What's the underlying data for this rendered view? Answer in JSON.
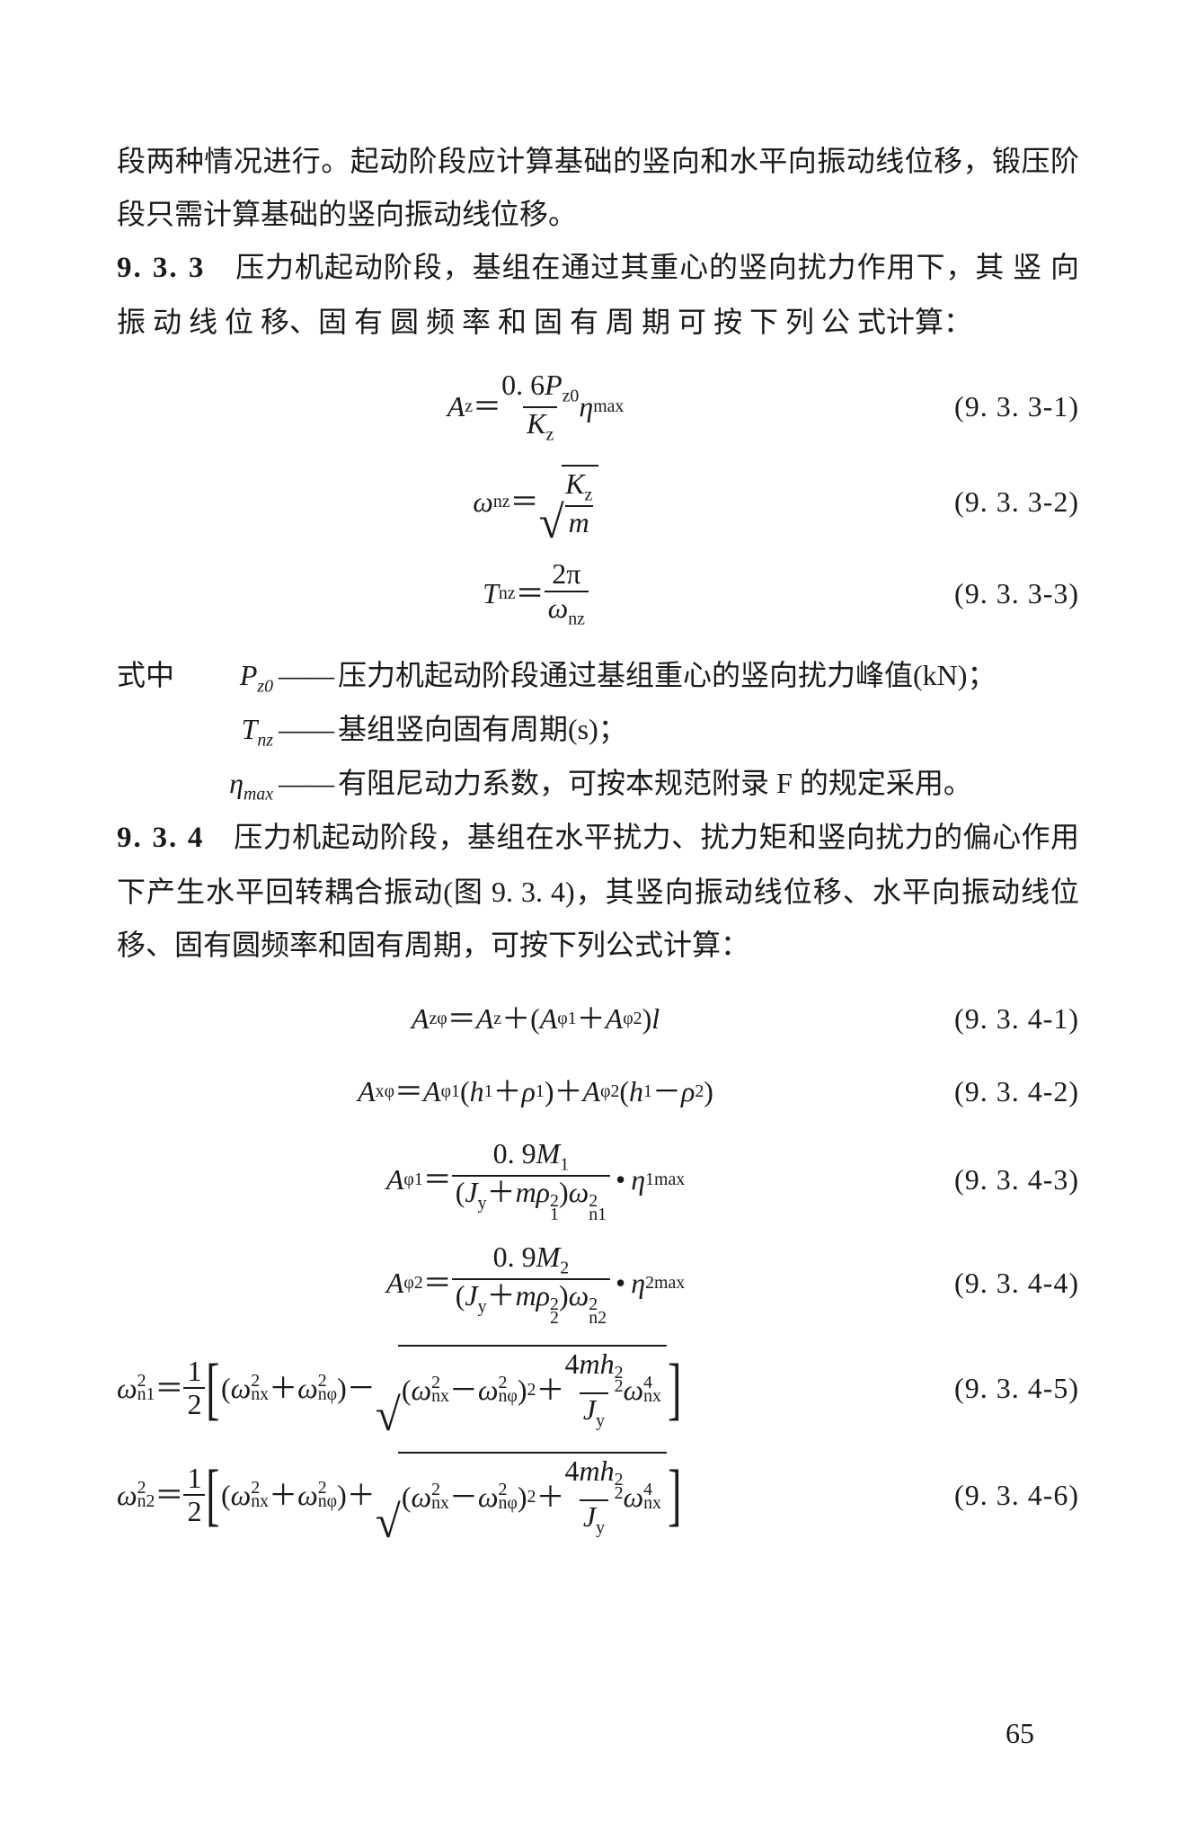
{
  "page_number": "65",
  "p1": "段两种情况进行。起动阶段应计算基础的竖向和水平向振动线位移，锻压阶段只需计算基础的竖向振动线位移。",
  "s933_num": "9. 3. 3",
  "s933_text": "　压力机起动阶段，基组在通过其重心的竖向扰力作用下，其 竖 向 振 动 线 位 移、固 有 圆 频 率 和 固 有 周 期 可 按 下 列 公 式计算：",
  "eq_933_1": {
    "label": "(9. 3. 3-1)",
    "lhs": "A",
    "lhs_sub": "z",
    "num_a": "0. 6",
    "num_b": "P",
    "num_b_sub": "z0",
    "den": "K",
    "den_sub": "z",
    "tail": "η",
    "tail_sub": "max"
  },
  "eq_933_2": {
    "label": "(9. 3. 3-2)",
    "lhs": "ω",
    "lhs_sub": "nz",
    "rad_num": "K",
    "rad_num_sub": "z",
    "rad_den": "m"
  },
  "eq_933_3": {
    "label": "(9. 3. 3-3)",
    "lhs": "T",
    "lhs_sub": "nz",
    "num": "2π",
    "den": "ω",
    "den_sub": "nz"
  },
  "where_label": "式中",
  "where1_sym": "P",
  "where1_sub": "z0",
  "where1_desc": "压力机起动阶段通过基组重心的竖向扰力峰值(kN)；",
  "where2_sym": "T",
  "where2_sub": "nz",
  "where2_desc": "基组竖向固有周期(s)；",
  "where3_sym": "η",
  "where3_sub": "max",
  "where3_desc": "有阻尼动力系数，可按本规范附录 F 的规定采用。",
  "s934_num": "9. 3. 4",
  "s934_text": "　压力机起动阶段，基组在水平扰力、扰力矩和竖向扰力的偏心作用下产生水平回转耦合振动(图 9. 3. 4)，其竖向振动线位移、水平向振动线位移、固有圆频率和固有周期，可按下列公式计算：",
  "eq_934_1": {
    "label": "(9. 3. 4-1)"
  },
  "eq_934_2": {
    "label": "(9. 3. 4-2)"
  },
  "eq_934_3": {
    "label": "(9. 3. 4-3)"
  },
  "eq_934_4": {
    "label": "(9. 3. 4-4)"
  },
  "eq_934_5": {
    "label": "(9. 3. 4-5)"
  },
  "eq_934_6": {
    "label": "(9. 3. 4-6)"
  },
  "sym": {
    "A": "A",
    "z": "z",
    "eq": "＝",
    "plus": "＋",
    "minus": "－",
    "phi1": "φ1",
    "phi2": "φ2",
    "l": "l",
    "x": "x",
    "phi": "φ",
    "h1": "h",
    "rho1": "ρ",
    "rho2": "ρ",
    "one": "1",
    "two": "2",
    "c09": "0. 9",
    "M": "M",
    "Jy": "J",
    "y": "y",
    "m": "m",
    "rho": "ρ",
    "omega": "ω",
    "n": "n",
    "eta": "η",
    "max1": "1max",
    "max2": "2max",
    "half": "1",
    "halfden": "2",
    "lbr": "[",
    "rbr": "]",
    "nx": "nx",
    "nphi": "nφ",
    "four": "4",
    "h": "h",
    "sub2": "2"
  }
}
